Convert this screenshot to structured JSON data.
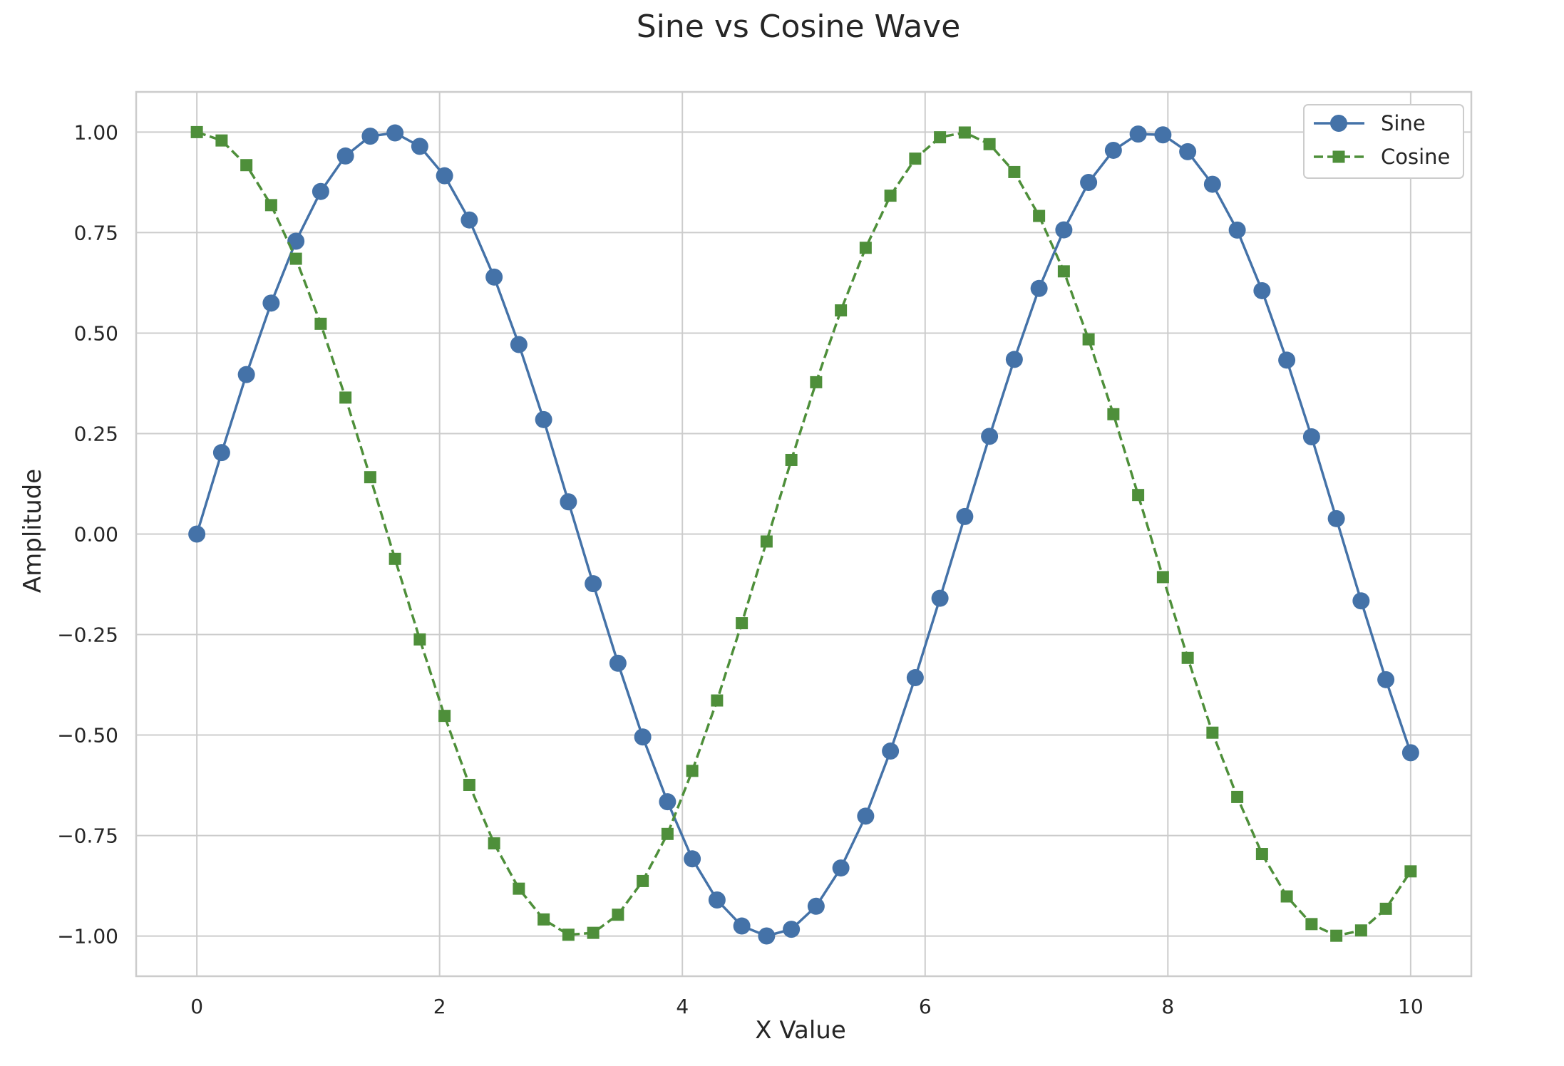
{
  "chart_data": {
    "type": "line",
    "title": "Sine vs Cosine Wave",
    "xlabel": "X Value",
    "ylabel": "Amplitude",
    "xlim": [
      -0.5,
      10.5
    ],
    "ylim": [
      -1.1,
      1.1
    ],
    "xticks": [
      0,
      2,
      4,
      6,
      8,
      10
    ],
    "xtick_labels": [
      "0",
      "2",
      "4",
      "6",
      "8",
      "10"
    ],
    "yticks": [
      -1.0,
      -0.75,
      -0.5,
      -0.25,
      0.0,
      0.25,
      0.5,
      0.75,
      1.0
    ],
    "ytick_labels": [
      "−1.00",
      "−0.75",
      "−0.50",
      "−0.25",
      "0.00",
      "0.25",
      "0.50",
      "0.75",
      "1.00"
    ],
    "grid": true,
    "legend_position": "top-right",
    "x": [
      0.0,
      0.2041,
      0.4082,
      0.6122,
      0.8163,
      1.0204,
      1.2245,
      1.4286,
      1.6327,
      1.8367,
      2.0408,
      2.2449,
      2.449,
      2.6531,
      2.8571,
      3.0612,
      3.2653,
      3.4694,
      3.6735,
      3.8776,
      4.0816,
      4.2857,
      4.4898,
      4.6939,
      4.898,
      5.102,
      5.3061,
      5.5102,
      5.7143,
      5.9184,
      6.1224,
      6.3265,
      6.5306,
      6.7347,
      6.9388,
      7.1429,
      7.3469,
      7.551,
      7.7551,
      7.9592,
      8.1633,
      8.3673,
      8.5714,
      8.7755,
      8.9796,
      9.1837,
      9.3878,
      9.5918,
      9.7959,
      10.0
    ],
    "series": [
      {
        "name": "Sine",
        "color": "#4472a8",
        "marker": "circle",
        "linestyle": "solid",
        "values": [
          0.0,
          0.2027,
          0.3969,
          0.5747,
          0.7286,
          0.8523,
          0.9406,
          0.9899,
          0.998,
          0.9646,
          0.8914,
          0.7814,
          0.6394,
          0.4715,
          0.2848,
          0.0802,
          -0.1235,
          -0.3213,
          -0.5048,
          -0.666,
          -0.808,
          -0.9103,
          -0.9751,
          -0.9998,
          -0.9832,
          -0.9259,
          -0.8307,
          -0.7017,
          -0.5399,
          -0.3573,
          -0.1597,
          0.0436,
          0.2432,
          0.4345,
          0.6111,
          0.7568,
          0.8748,
          0.9547,
          0.9952,
          0.9932,
          0.9513,
          0.8703,
          0.7563,
          0.6055,
          0.4327,
          0.2419,
          0.0384,
          -0.1662,
          -0.3622,
          -0.544
        ]
      },
      {
        "name": "Cosine",
        "color": "#4e8f3a",
        "marker": "square",
        "linestyle": "dashed",
        "values": [
          1.0,
          0.9792,
          0.9179,
          0.8184,
          0.685,
          0.5232,
          0.3396,
          0.1415,
          -0.0617,
          -0.2621,
          -0.4523,
          -0.624,
          -0.7695,
          -0.8822,
          -0.9587,
          -0.9968,
          -0.9921,
          -0.947,
          -0.8632,
          -0.746,
          -0.5891,
          -0.414,
          -0.2217,
          -0.0185,
          0.1844,
          0.3778,
          0.5565,
          0.7122,
          0.8419,
          0.934,
          0.9872,
          0.999,
          0.97,
          0.9007,
          0.7915,
          0.6536,
          0.4845,
          0.2982,
          0.0972,
          -0.1071,
          -0.3081,
          -0.4941,
          -0.654,
          -0.796,
          -0.9015,
          -0.9703,
          -0.9993,
          -0.9861,
          -0.9322,
          -0.8391
        ]
      }
    ]
  }
}
